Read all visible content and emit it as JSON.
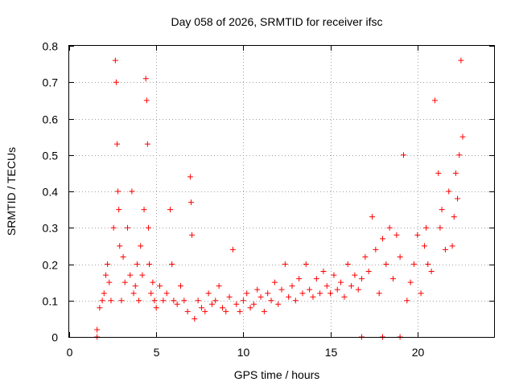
{
  "chart_data": {
    "type": "scatter",
    "title": "Day 058 of 2026, SRMTID for receiver ifsc",
    "xlabel": "GPS time / hours",
    "ylabel": "SRMTID / TECUs",
    "xlim": [
      0,
      24.4
    ],
    "ylim": [
      0,
      0.8
    ],
    "x_ticks": [
      "0",
      "5",
      "10",
      "15",
      "20"
    ],
    "y_ticks": [
      "0",
      "0.1",
      "0.2",
      "0.3",
      "0.4",
      "0.5",
      "0.6",
      "0.7",
      "0.8"
    ],
    "grid": true,
    "marker": "plus",
    "color": "#ff0000",
    "series": [
      {
        "name": "SRMTID",
        "x": [
          1.6,
          1.75,
          1.9,
          2.0,
          2.1,
          2.2,
          2.3,
          2.4,
          2.55,
          2.65,
          2.7,
          2.75,
          2.8,
          2.85,
          2.9,
          3.0,
          3.1,
          3.2,
          3.35,
          3.5,
          3.6,
          3.7,
          3.8,
          3.9,
          4.0,
          4.1,
          4.2,
          4.3,
          4.4,
          4.45,
          4.5,
          4.55,
          4.6,
          4.7,
          4.8,
          4.9,
          5.0,
          5.2,
          5.4,
          5.6,
          5.8,
          5.9,
          6.0,
          6.2,
          6.4,
          6.6,
          6.8,
          6.95,
          7.0,
          7.05,
          7.2,
          7.4,
          7.6,
          7.8,
          8.0,
          8.2,
          8.4,
          8.6,
          8.8,
          9.0,
          9.2,
          9.4,
          9.6,
          9.8,
          10.0,
          10.2,
          10.4,
          10.6,
          10.8,
          11.0,
          11.2,
          11.4,
          11.6,
          11.8,
          12.0,
          12.2,
          12.4,
          12.6,
          12.8,
          13.0,
          13.2,
          13.4,
          13.6,
          13.8,
          14.0,
          14.2,
          14.4,
          14.6,
          14.8,
          15.0,
          15.2,
          15.4,
          15.6,
          15.8,
          16.0,
          16.2,
          16.4,
          16.6,
          16.8,
          17.0,
          17.2,
          17.4,
          17.6,
          17.8,
          18.0,
          18.2,
          18.4,
          18.6,
          18.8,
          19.0,
          19.2,
          19.4,
          19.6,
          19.8,
          20.0,
          20.2,
          20.4,
          20.5,
          20.6,
          20.8,
          21.0,
          21.2,
          21.3,
          21.4,
          21.6,
          21.8,
          22.0,
          22.1,
          22.2,
          22.3,
          22.4,
          22.5,
          22.6,
          1.6,
          16.8,
          18.0,
          19.0
        ],
        "values": [
          0.02,
          0.08,
          0.1,
          0.12,
          0.17,
          0.2,
          0.15,
          0.1,
          0.3,
          0.76,
          0.7,
          0.53,
          0.4,
          0.35,
          0.25,
          0.1,
          0.22,
          0.15,
          0.3,
          0.17,
          0.4,
          0.12,
          0.14,
          0.2,
          0.1,
          0.25,
          0.17,
          0.35,
          0.71,
          0.65,
          0.53,
          0.3,
          0.2,
          0.12,
          0.15,
          0.1,
          0.08,
          0.14,
          0.1,
          0.12,
          0.35,
          0.2,
          0.1,
          0.09,
          0.14,
          0.1,
          0.07,
          0.44,
          0.37,
          0.28,
          0.05,
          0.1,
          0.08,
          0.07,
          0.12,
          0.09,
          0.1,
          0.14,
          0.08,
          0.07,
          0.11,
          0.24,
          0.09,
          0.07,
          0.1,
          0.12,
          0.08,
          0.09,
          0.13,
          0.11,
          0.07,
          0.12,
          0.1,
          0.15,
          0.09,
          0.13,
          0.2,
          0.11,
          0.14,
          0.1,
          0.16,
          0.12,
          0.2,
          0.13,
          0.11,
          0.16,
          0.12,
          0.18,
          0.14,
          0.12,
          0.17,
          0.13,
          0.15,
          0.11,
          0.2,
          0.14,
          0.17,
          0.13,
          0.16,
          0.22,
          0.18,
          0.33,
          0.24,
          0.12,
          0.27,
          0.2,
          0.3,
          0.16,
          0.28,
          0.22,
          0.5,
          0.1,
          0.15,
          0.2,
          0.28,
          0.12,
          0.25,
          0.3,
          0.2,
          0.18,
          0.65,
          0.45,
          0.3,
          0.35,
          0.24,
          0.4,
          0.25,
          0.33,
          0.45,
          0.38,
          0.5,
          0.76,
          0.55,
          0.0,
          0.0,
          0.0,
          0.0
        ]
      }
    ]
  }
}
